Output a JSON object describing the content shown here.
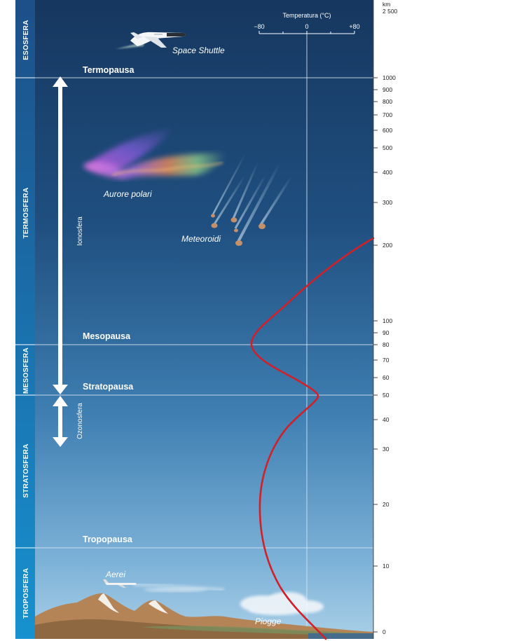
{
  "layers": [
    {
      "name": "ESOSFERA"
    },
    {
      "name": "TERMOSFERA"
    },
    {
      "name": "MESOSFERA"
    },
    {
      "name": "STRATOSFERA"
    },
    {
      "name": "TROPOSFERA"
    }
  ],
  "boundaries": [
    {
      "name": "Termopausa",
      "altitude_km": 1000
    },
    {
      "name": "Mesopausa",
      "altitude_km": 80
    },
    {
      "name": "Stratopausa",
      "altitude_km": 50
    },
    {
      "name": "Tropopausa",
      "altitude_km": 13
    }
  ],
  "altitude_axis": {
    "unit": "km",
    "top_label": "2 500",
    "ticks": [
      "1000",
      "900",
      "800",
      "700",
      "600",
      "500",
      "400",
      "300",
      "200",
      "100",
      "90",
      "80",
      "70",
      "60",
      "50",
      "40",
      "30",
      "20",
      "10",
      "0"
    ]
  },
  "temperature_axis": {
    "title": "Temperatura (°C)",
    "ticks": [
      "−80",
      "0",
      "+80"
    ]
  },
  "regions": [
    {
      "name": "Ionosfera"
    },
    {
      "name": "Ozonosfera"
    }
  ],
  "objects": [
    {
      "name": "Space Shuttle"
    },
    {
      "name": "Aurore polari"
    },
    {
      "name": "Meteoroidi"
    },
    {
      "name": "Aerei"
    },
    {
      "name": "Piogge"
    }
  ],
  "colors": {
    "sky_top": "#16375f",
    "sky_bottom": "#a9cfe7",
    "temperature_curve": "#d0202a",
    "band_top": "#1d4f88",
    "band_bottom": "#1791cf"
  }
}
